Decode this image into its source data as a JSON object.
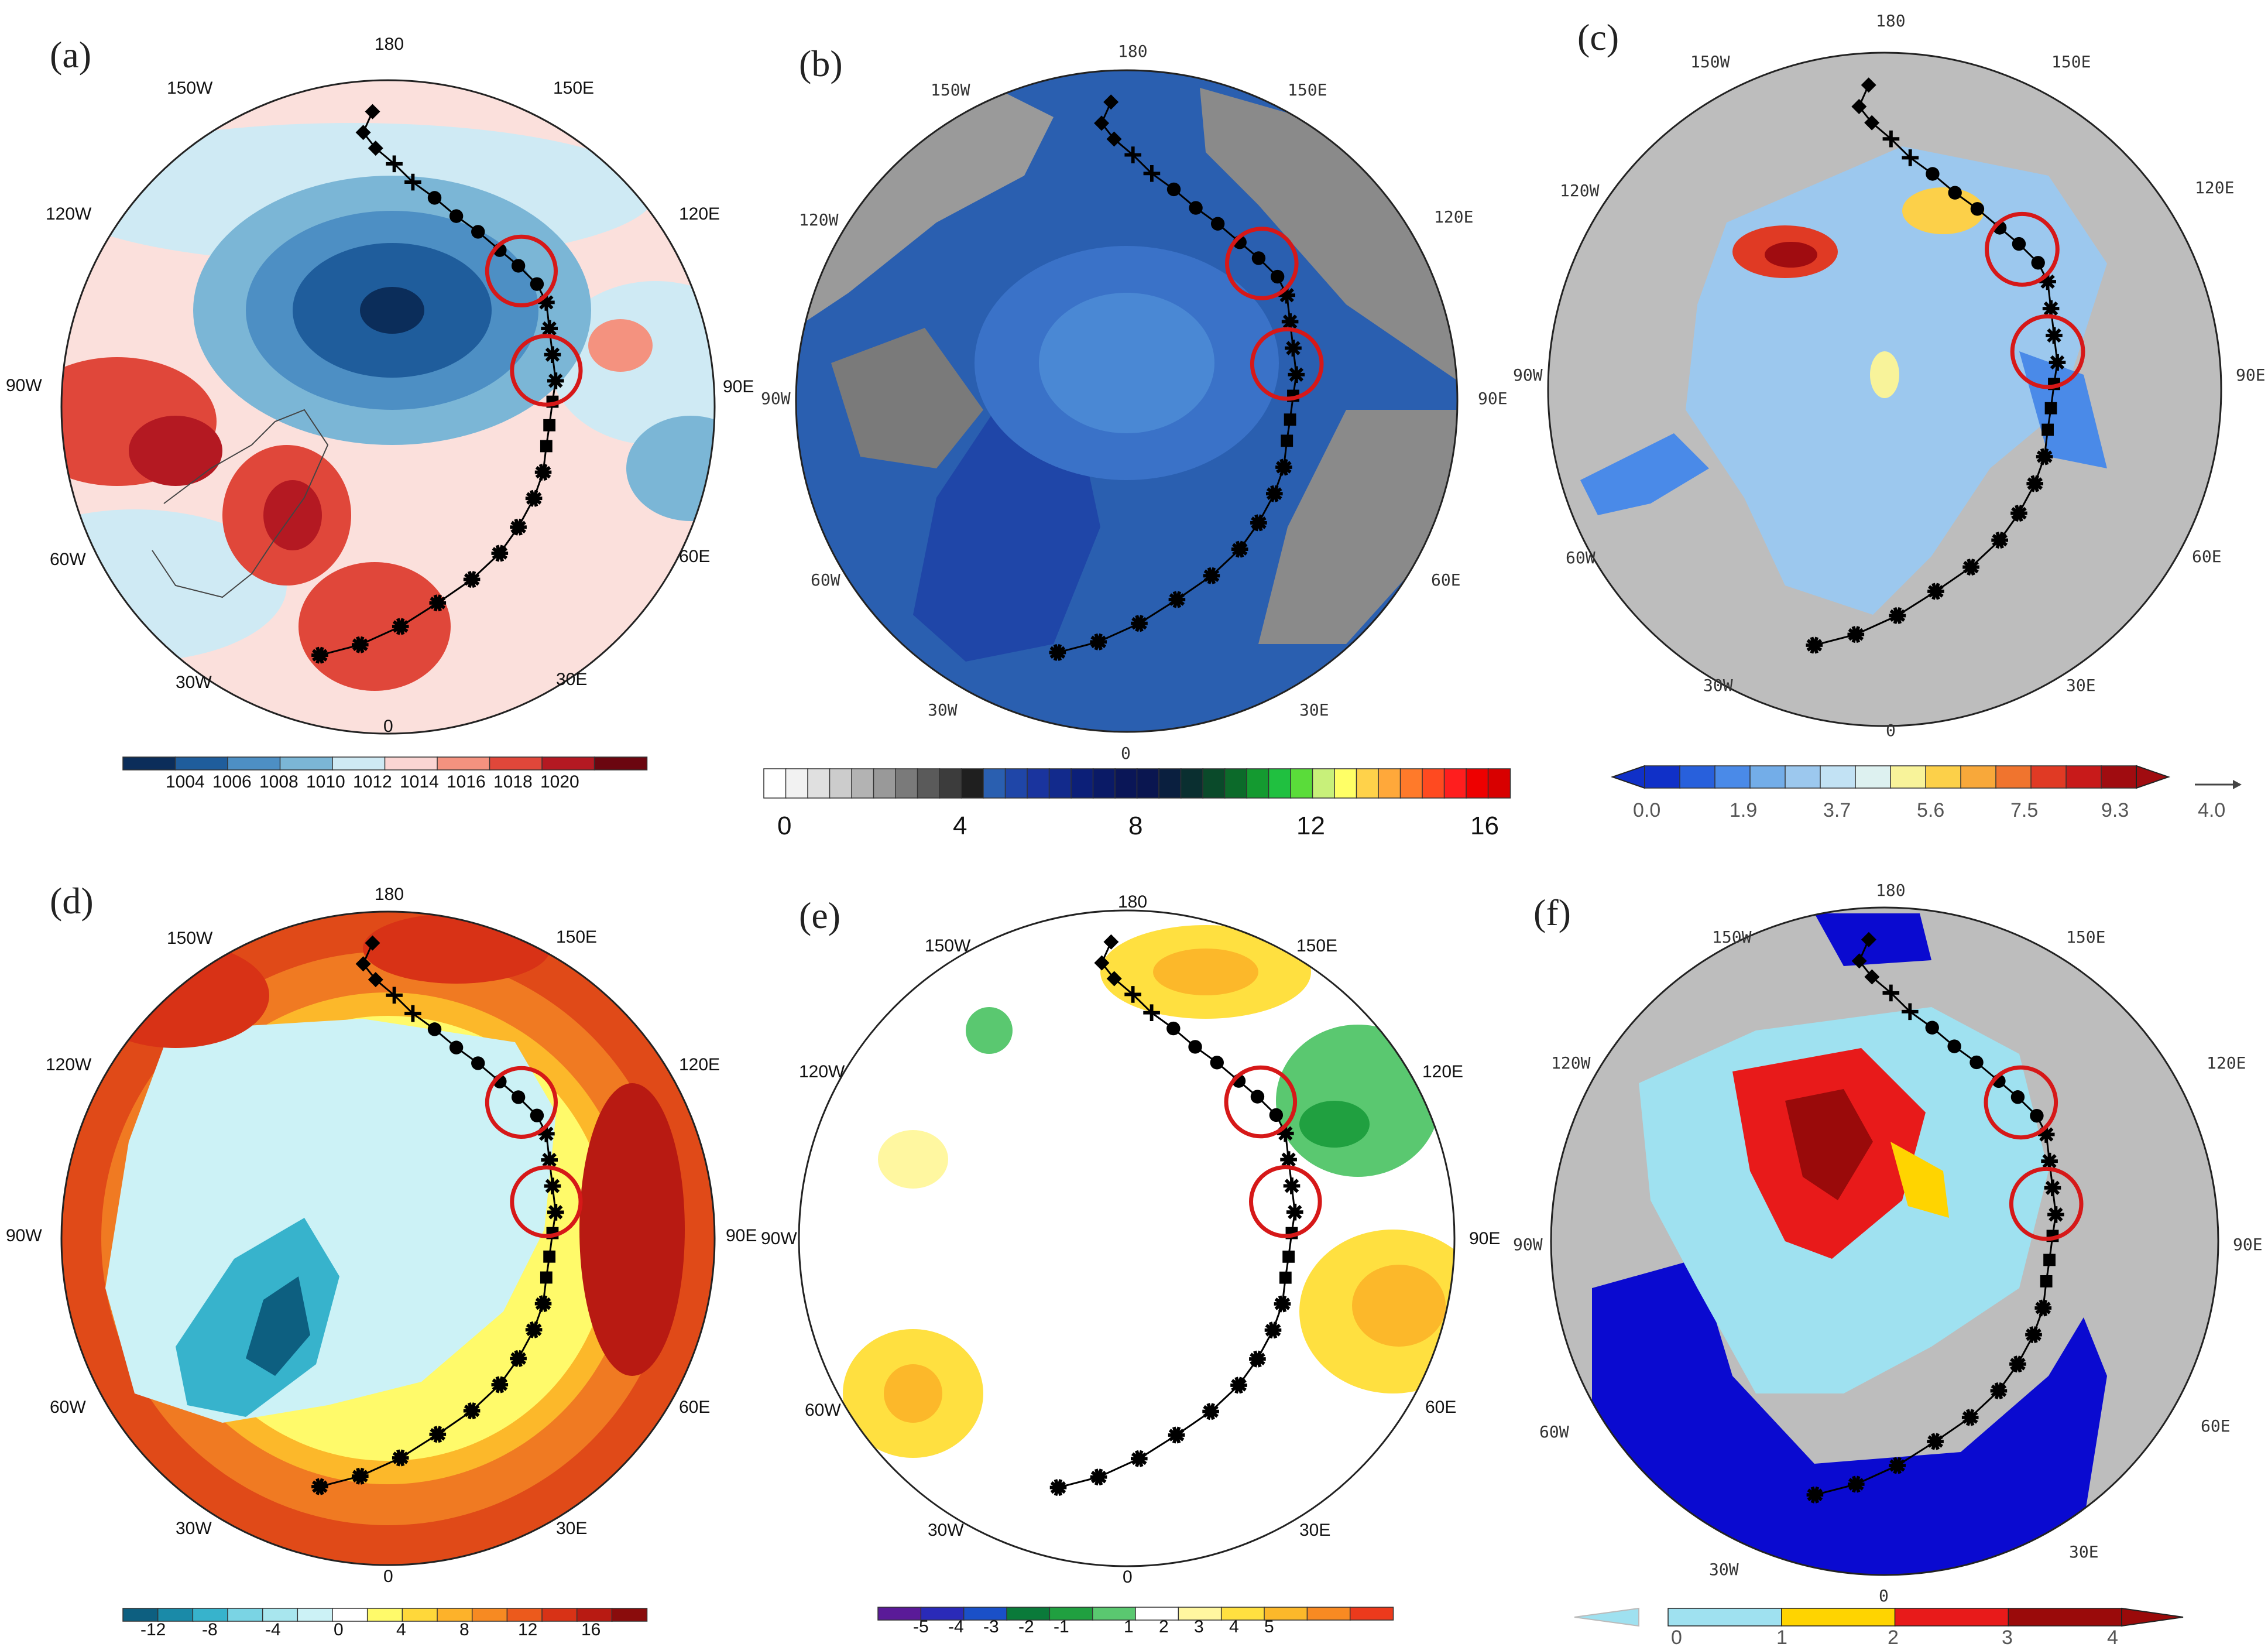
{
  "figure": {
    "panels": [
      {
        "id": "a",
        "label": "(a)",
        "lon_labels": [
          "180",
          "150E",
          "120E",
          "90E",
          "60E",
          "30E",
          "0",
          "30W",
          "60W",
          "90W",
          "120W",
          "150W"
        ],
        "colorbar_ticks": [
          "1004",
          "1006",
          "1008",
          "1010",
          "1012",
          "1014",
          "1016",
          "1018",
          "1020"
        ],
        "colorbar_colors": [
          "#0b2d5a",
          "#1f5d9c",
          "#4d8fc4",
          "#7bb6d6",
          "#cfeaf4",
          "#fbd5d3",
          "#f4927f",
          "#e0473a",
          "#b41922",
          "#6b0610"
        ]
      },
      {
        "id": "b",
        "label": "(b)",
        "lon_labels": [
          "180",
          "150E",
          "120E",
          "90E",
          "60E",
          "30E",
          "0",
          "30W",
          "60W",
          "90W",
          "120W",
          "150W"
        ],
        "colorbar_ticks": [
          "0",
          "4",
          "8",
          "12",
          "16"
        ],
        "colorbar_colors": [
          "#ffffff",
          "#f2f2f2",
          "#e0e0e0",
          "#cccccc",
          "#b3b3b3",
          "#999999",
          "#7a7a7a",
          "#5a5a5a",
          "#3c3c3c",
          "#1f1f1f",
          "#2a5fb0",
          "#1f46a8",
          "#1a349e",
          "#122a8c",
          "#0c1f78",
          "#0a1a66",
          "#0a1657",
          "#0a1650",
          "#0a1f3f",
          "#0a2f30",
          "#0a4a2a",
          "#0c6a2a",
          "#149a30",
          "#20c040",
          "#5adc3a",
          "#c8f07a",
          "#ffff66",
          "#ffd24a",
          "#ffa83a",
          "#ff7a2a",
          "#ff4a20",
          "#ff1e1e",
          "#ee0000",
          "#d80000"
        ]
      },
      {
        "id": "c",
        "label": "(c)",
        "lon_labels": [
          "180",
          "150E",
          "120E",
          "90E",
          "60E",
          "30E",
          "0",
          "30W",
          "60W",
          "90W",
          "120W",
          "150W"
        ],
        "colorbar_ticks": [
          "0.0",
          "1.9",
          "3.7",
          "5.6",
          "7.5",
          "9.3"
        ],
        "colorbar_colors": [
          "#1030c8",
          "#2860dc",
          "#4a8ae8",
          "#73ade8",
          "#9cc8ee",
          "#c2e2f4",
          "#ddf1f0",
          "#f8f39a",
          "#fcd049",
          "#f8a83a",
          "#f0742e",
          "#e03a24",
          "#c81a1a",
          "#a00c10"
        ],
        "vector_ref_label": "4.0"
      },
      {
        "id": "d",
        "label": "(d)",
        "lon_labels": [
          "180",
          "150E",
          "120E",
          "90E",
          "60E",
          "30E",
          "0",
          "30W",
          "60W",
          "90W",
          "120W",
          "150W"
        ],
        "colorbar_ticks": [
          "-12",
          "-8",
          "-4",
          "0",
          "4",
          "8",
          "12",
          "16"
        ],
        "colorbar_colors": [
          "#0d5f80",
          "#1a8aa8",
          "#37b3cc",
          "#7ad4e4",
          "#a8e6ee",
          "#ccf2f6",
          "#ffffff",
          "#fffa6a",
          "#ffd83a",
          "#fdb22a",
          "#f78a22",
          "#ec5a1c",
          "#d83216",
          "#b81a12",
          "#8a0c0c"
        ]
      },
      {
        "id": "e",
        "label": "(e)",
        "lon_labels": [
          "180",
          "150E",
          "120E",
          "90E",
          "60E",
          "30E",
          "0",
          "30W",
          "60W",
          "90W",
          "120W",
          "150W"
        ],
        "colorbar_ticks": [
          "-5",
          "-4",
          "-3",
          "-2",
          "-1",
          "1",
          "2",
          "3",
          "4",
          "5"
        ],
        "colorbar_colors": [
          "#5a1a98",
          "#2a2ab8",
          "#1a50c8",
          "#0a7a3a",
          "#20a040",
          "#5ac870",
          "#ffffff",
          "#fff7a0",
          "#ffe040",
          "#fcb82a",
          "#f88a22",
          "#ec3a1c"
        ]
      },
      {
        "id": "f",
        "label": "(f)",
        "lon_labels": [
          "180",
          "150E",
          "120E",
          "90E",
          "60E",
          "30E",
          "0",
          "30W",
          "60W",
          "90W",
          "120W",
          "150W"
        ],
        "colorbar_ticks": [
          "0",
          "1",
          "2",
          "3",
          "4"
        ],
        "colorbar_colors": [
          "#9fe1f0",
          "#ffd400",
          "#e81a1a",
          "#9a0a0a"
        ]
      }
    ],
    "colors": {
      "route": "#000000",
      "highlight_circle": "#d61818",
      "land_outline": "#3a3a3a"
    }
  }
}
